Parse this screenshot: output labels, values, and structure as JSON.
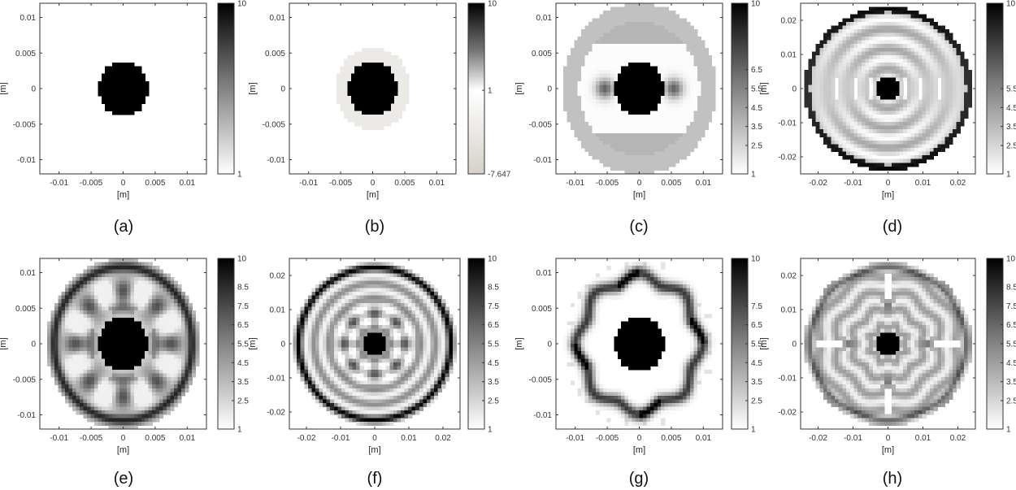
{
  "figure": {
    "captions": [
      "(a)",
      "(b)",
      "(c)",
      "(d)",
      "(e)",
      "(f)",
      "(g)",
      "(h)"
    ]
  },
  "colors": {
    "dark": "#000000",
    "light": "#ffffff",
    "frame": "#333333",
    "beige": "#d6d2c9"
  },
  "chart_data": [
    {
      "id": "a",
      "type": "heatmap",
      "caption": "(a)",
      "xlabel": "[m]",
      "ylabel": "[m]",
      "xlim": [
        -0.013,
        0.013
      ],
      "ylim": [
        -0.012,
        0.012
      ],
      "xticks": [
        -0.01,
        -0.005,
        0,
        0.005,
        0.01
      ],
      "xticklabels": [
        "-0.01",
        "-0.005",
        "0",
        "0.005",
        "0.01"
      ],
      "yticks": [
        0.01,
        0.005,
        0,
        -0.005,
        -0.01
      ],
      "yticklabels": [
        "0.01",
        "0.005",
        "0",
        "-0.005",
        "-0.01"
      ],
      "colorbar": {
        "min": 1,
        "max": 10,
        "ticks": [
          10,
          1
        ],
        "labels": [
          "10",
          "1"
        ]
      },
      "pattern": "inclusion",
      "domain_radius": 0.012,
      "inclusion_radius": 0.004
    },
    {
      "id": "b",
      "type": "heatmap",
      "caption": "(b)",
      "xlabel": "[m]",
      "ylabel": "[m]",
      "xlim": [
        -0.013,
        0.013
      ],
      "ylim": [
        -0.012,
        0.012
      ],
      "xticks": [
        -0.01,
        -0.005,
        0,
        0.005,
        0.01
      ],
      "xticklabels": [
        "-0.01",
        "-0.005",
        "0",
        "0.005",
        "0.01"
      ],
      "yticks": [
        0.01,
        0.005,
        0,
        -0.005,
        -0.01
      ],
      "yticklabels": [
        "0.01",
        "0.005",
        "0",
        "-0.005",
        "-0.01"
      ],
      "colorbar": {
        "min": -7.647,
        "max": 10,
        "ticks": [
          10,
          1,
          -7.647
        ],
        "labels": [
          "10",
          "1",
          "-7.647"
        ],
        "diverging": true
      },
      "pattern": "inclusion_with_shell",
      "domain_radius": 0.012,
      "inclusion_radius": 0.004,
      "shell_outer_radius": 0.0058
    },
    {
      "id": "c",
      "type": "heatmap",
      "caption": "(c)",
      "xlabel": "[m]",
      "ylabel": "[m]",
      "xlim": [
        -0.013,
        0.013
      ],
      "ylim": [
        -0.012,
        0.012
      ],
      "xticks": [
        -0.01,
        -0.005,
        0,
        0.005,
        0.01
      ],
      "xticklabels": [
        "-0.01",
        "-0.005",
        "0",
        "0.005",
        "0.01"
      ],
      "yticks": [
        0.01,
        0.005,
        0,
        -0.005,
        -0.01
      ],
      "yticklabels": [
        "0.01",
        "0.005",
        "0",
        "-0.005",
        "-0.01"
      ],
      "colorbar": {
        "min": 1,
        "max": 10,
        "ticks": [
          10,
          6.5,
          5.5,
          4.5,
          3.5,
          2.5,
          1
        ],
        "labels": [
          "10",
          "6.5",
          "5.5",
          "4.5",
          "3.5",
          "2.5",
          "1"
        ]
      },
      "pattern": "dipole",
      "domain_radius": 0.012,
      "inclusion_radius": 0.004
    },
    {
      "id": "d",
      "type": "heatmap",
      "caption": "(d)",
      "xlabel": "[m]",
      "ylabel": "[m]",
      "xlim": [
        -0.025,
        0.025
      ],
      "ylim": [
        -0.025,
        0.025
      ],
      "xticks": [
        -0.02,
        -0.01,
        0,
        0.01,
        0.02
      ],
      "xticklabels": [
        "-0.02",
        "-0.01",
        "0",
        "0.01",
        "0.02"
      ],
      "yticks": [
        0.02,
        0.01,
        0,
        -0.01,
        -0.02
      ],
      "yticklabels": [
        "0.02",
        "0.01",
        "0",
        "-0.01",
        "-0.02"
      ],
      "colorbar": {
        "min": 1,
        "max": 10,
        "ticks": [
          10,
          5.5,
          4.5,
          3.5,
          2.5,
          1
        ],
        "labels": [
          "10",
          "5.5",
          "4.5",
          "3.5",
          "2.5",
          "1"
        ]
      },
      "pattern": "rings_dipole",
      "domain_radius": 0.024,
      "inclusion_radius": 0.0038
    },
    {
      "id": "e",
      "type": "heatmap",
      "caption": "(e)",
      "xlabel": "[m]",
      "ylabel": "[m]",
      "xlim": [
        -0.013,
        0.013
      ],
      "ylim": [
        -0.012,
        0.012
      ],
      "xticks": [
        -0.01,
        -0.005,
        0,
        0.005,
        0.01
      ],
      "xticklabels": [
        "-0.01",
        "-0.005",
        "0",
        "0.005",
        "0.01"
      ],
      "yticks": [
        0.01,
        0.005,
        0,
        -0.005,
        -0.01
      ],
      "yticklabels": [
        "0.01",
        "0.005",
        "0",
        "-0.005",
        "-0.01"
      ],
      "colorbar": {
        "min": 1,
        "max": 10,
        "ticks": [
          10,
          8.5,
          7.5,
          6.5,
          5.5,
          4.5,
          3.5,
          2.5,
          1
        ],
        "labels": [
          "10",
          "8.5",
          "7.5",
          "6.5",
          "5.5",
          "4.5",
          "3.5",
          "2.5",
          "1"
        ]
      },
      "pattern": "octo_loops",
      "domain_radius": 0.012,
      "inclusion_radius": 0.004
    },
    {
      "id": "f",
      "type": "heatmap",
      "caption": "(f)",
      "xlabel": "[m]",
      "ylabel": "[m]",
      "xlim": [
        -0.025,
        0.025
      ],
      "ylim": [
        -0.025,
        0.025
      ],
      "xticks": [
        -0.02,
        -0.01,
        0,
        0.01,
        0.02
      ],
      "xticklabels": [
        "-0.02",
        "-0.01",
        "0",
        "0.01",
        "0.02"
      ],
      "yticks": [
        0.02,
        0.01,
        0,
        -0.01,
        -0.02
      ],
      "yticklabels": [
        "0.02",
        "0.01",
        "0",
        "-0.01",
        "-0.02"
      ],
      "colorbar": {
        "min": 1,
        "max": 10,
        "ticks": [
          10,
          8.5,
          7.5,
          6.5,
          5.5,
          4.5,
          3.5,
          2.5,
          1
        ],
        "labels": [
          "10",
          "8.5",
          "7.5",
          "6.5",
          "5.5",
          "4.5",
          "3.5",
          "2.5",
          "1"
        ]
      },
      "pattern": "rings_star",
      "domain_radius": 0.024,
      "inclusion_radius": 0.0035
    },
    {
      "id": "g",
      "type": "heatmap",
      "caption": "(g)",
      "xlabel": "[m]",
      "ylabel": "[m]",
      "xlim": [
        -0.013,
        0.013
      ],
      "ylim": [
        -0.012,
        0.012
      ],
      "xticks": [
        -0.01,
        -0.005,
        0,
        0.005,
        0.01
      ],
      "xticklabels": [
        "-0.01",
        "-0.005",
        "0",
        "0.005",
        "0.01"
      ],
      "yticks": [
        0.01,
        0.005,
        0,
        -0.005,
        -0.01
      ],
      "yticklabels": [
        "0.01",
        "0.005",
        "0",
        "-0.005",
        "-0.01"
      ],
      "colorbar": {
        "min": 1,
        "max": 10,
        "ticks": [
          10,
          7.5,
          6.5,
          5.5,
          4.5,
          3.5,
          2.5,
          1
        ],
        "labels": [
          "10",
          "7.5",
          "6.5",
          "5.5",
          "4.5",
          "3.5",
          "2.5",
          "1"
        ]
      },
      "pattern": "wavy_ring",
      "domain_radius": 0.012,
      "inclusion_radius": 0.004
    },
    {
      "id": "h",
      "type": "heatmap",
      "caption": "(h)",
      "xlabel": "[m]",
      "ylabel": "[m]",
      "xlim": [
        -0.025,
        0.025
      ],
      "ylim": [
        -0.025,
        0.025
      ],
      "xticks": [
        -0.02,
        -0.01,
        0,
        0.01,
        0.02
      ],
      "xticklabels": [
        "-0.02",
        "-0.01",
        "0",
        "0.01",
        "0.02"
      ],
      "yticks": [
        0.02,
        0.01,
        0,
        -0.01,
        -0.02
      ],
      "yticklabels": [
        "0.02",
        "0.01",
        "0",
        "-0.01",
        "-0.02"
      ],
      "colorbar": {
        "min": 1,
        "max": 10,
        "ticks": [
          10,
          8.5,
          7.5,
          6.5,
          5.5,
          4.5,
          3.5,
          2.5,
          1
        ],
        "labels": [
          "10",
          "8.5",
          "7.5",
          "6.5",
          "5.5",
          "4.5",
          "3.5",
          "2.5",
          "1"
        ]
      },
      "pattern": "rings_cross",
      "domain_radius": 0.024,
      "inclusion_radius": 0.0037
    }
  ]
}
